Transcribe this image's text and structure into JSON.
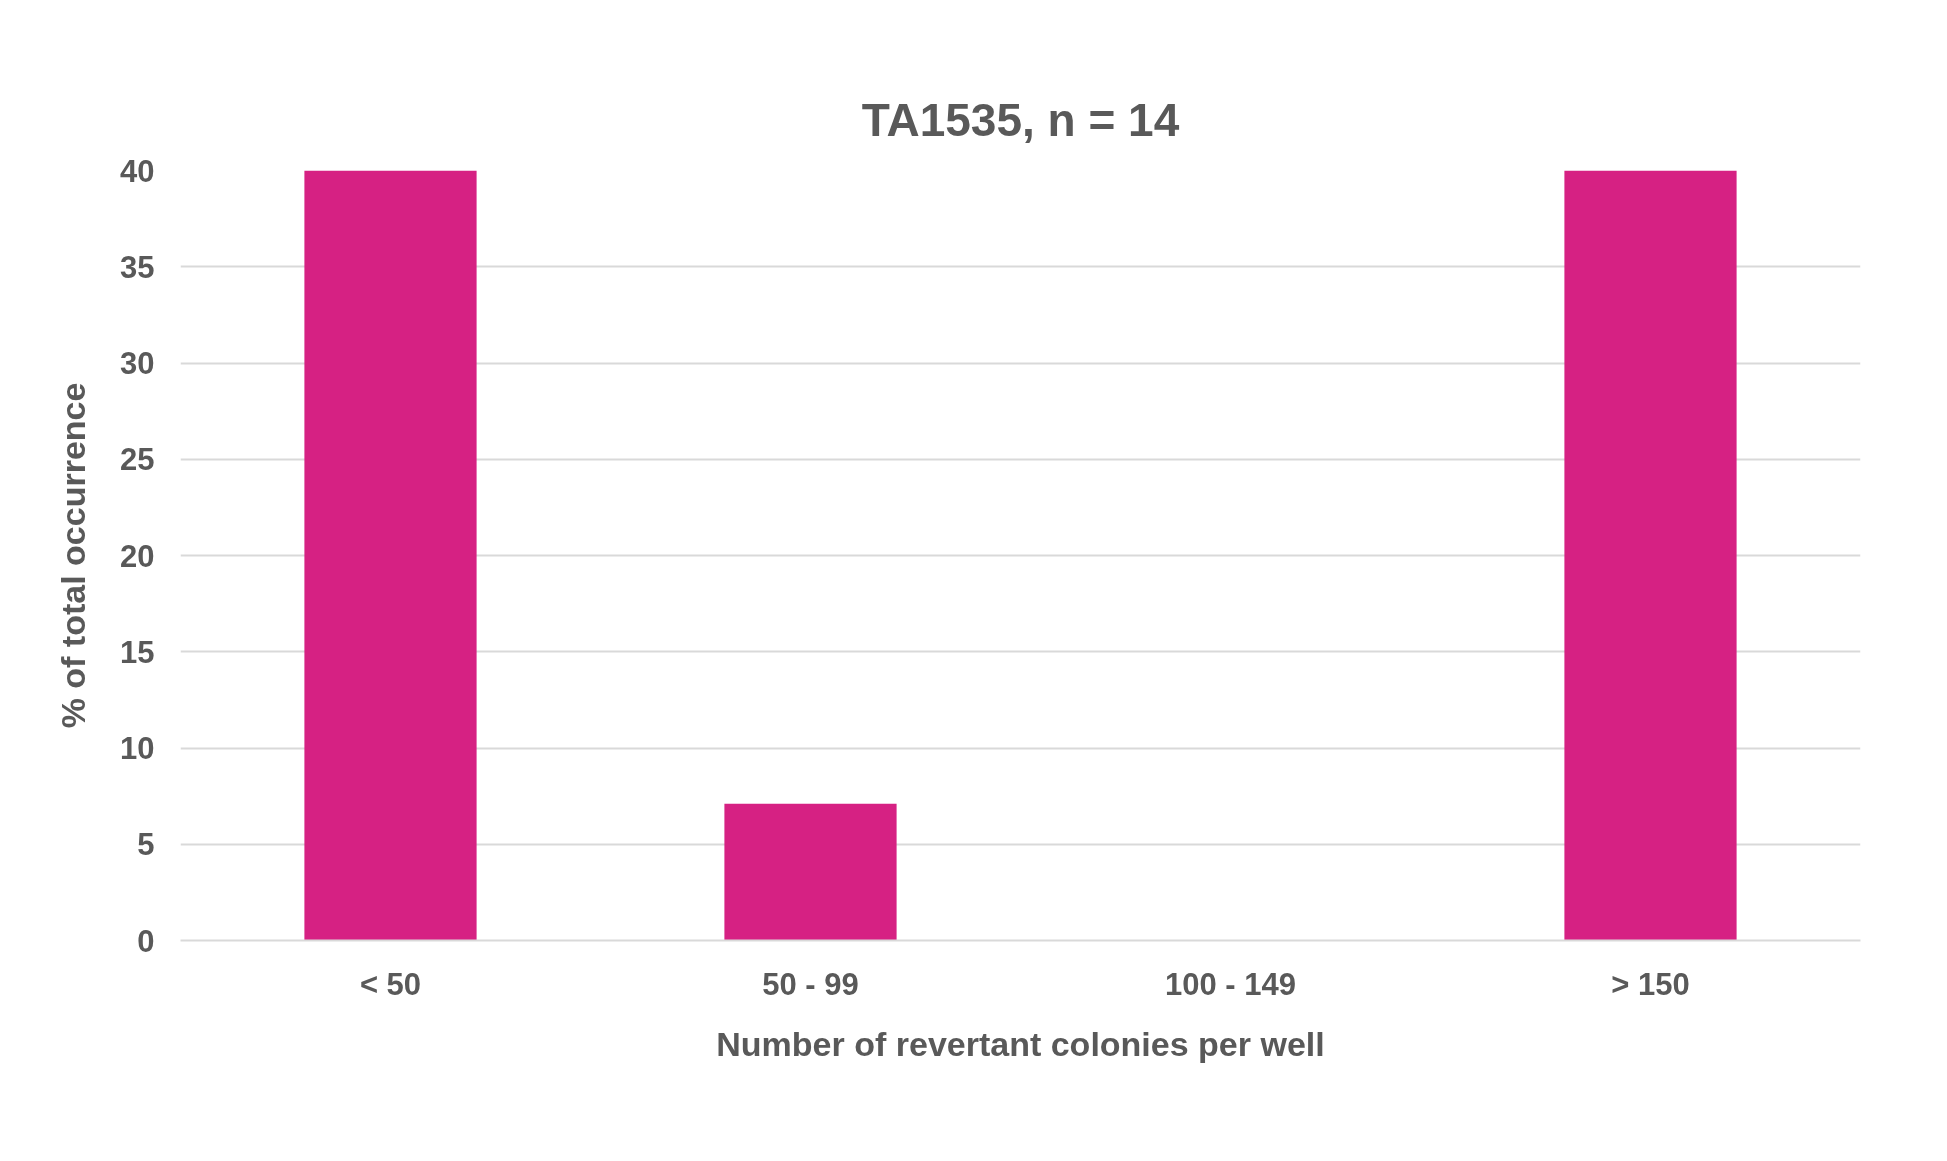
{
  "chart_data": {
    "type": "bar",
    "title": "TA1535, n = 14",
    "xlabel": "Number of revertant colonies per well",
    "ylabel": "% of total occurrence",
    "categories": [
      "< 50",
      "50 - 99",
      "100 - 149",
      "> 150"
    ],
    "values": [
      40,
      7.1,
      0,
      40
    ],
    "color": "#d62183",
    "ylim": [
      0,
      40
    ],
    "yticks": [
      0,
      5,
      10,
      15,
      20,
      25,
      30,
      35,
      40
    ],
    "grid": "y"
  }
}
